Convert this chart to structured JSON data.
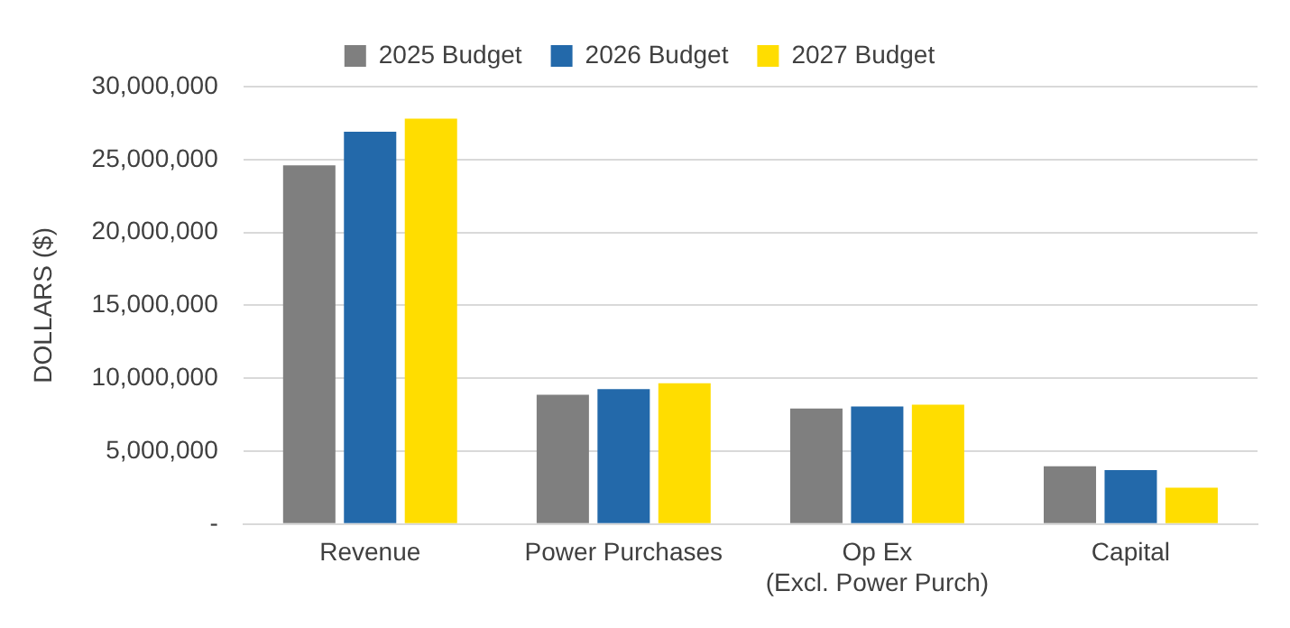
{
  "chart_data": {
    "type": "bar",
    "ylabel": "DOLLARS ($)",
    "categories": [
      "Revenue",
      "Power Purchases",
      "Op Ex\n(Excl. Power Purch)",
      "Capital"
    ],
    "series": [
      {
        "name": "2025 Budget",
        "color": "#7f7f7f",
        "values": [
          24600000,
          8870000,
          7930000,
          3960000
        ]
      },
      {
        "name": "2026 Budget",
        "color": "#2369aa",
        "values": [
          26900000,
          9260000,
          8060000,
          3700000
        ]
      },
      {
        "name": "2027 Budget",
        "color": "#ffdd00",
        "values": [
          27800000,
          9660000,
          8190000,
          2500000
        ]
      }
    ],
    "ylim": [
      0,
      30000000
    ],
    "yticks": [
      {
        "value": 0,
        "label": "-"
      },
      {
        "value": 5000000,
        "label": "5,000,000"
      },
      {
        "value": 10000000,
        "label": "10,000,000"
      },
      {
        "value": 15000000,
        "label": "15,000,000"
      },
      {
        "value": 20000000,
        "label": "20,000,000"
      },
      {
        "value": 25000000,
        "label": "25,000,000"
      },
      {
        "value": 30000000,
        "label": "30,000,000"
      }
    ],
    "grid": "y",
    "legend": "top"
  }
}
